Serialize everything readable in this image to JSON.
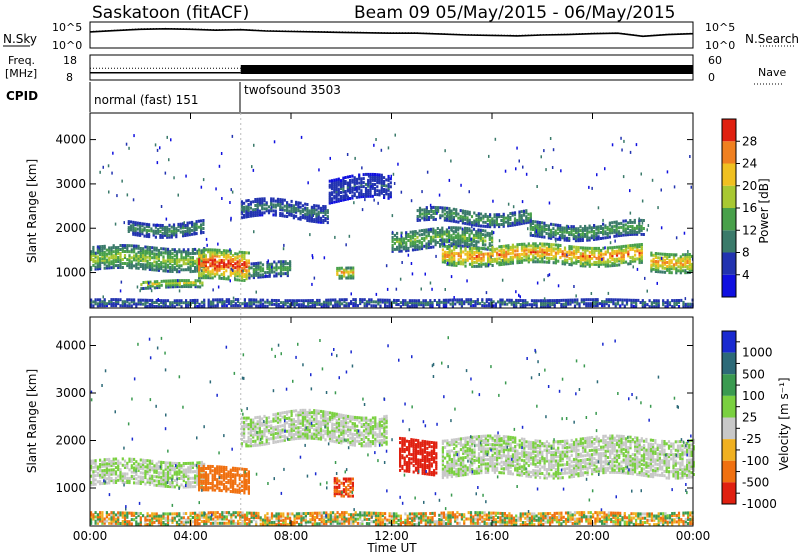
{
  "header": {
    "station": "Saskatoon (fitACF)",
    "beam_info": "Beam 09  05/May/2015 - 06/May/2015"
  },
  "chart_data": [
    {
      "type": "line",
      "panel": "noise",
      "left_label": "N.Sky",
      "right_label": "N.Search",
      "left_ticks": [
        "10^5",
        "10^0"
      ],
      "right_ticks": [
        "10^5",
        "10^0"
      ],
      "scale": "log",
      "x_hours": [
        0,
        1,
        2,
        3,
        4,
        5,
        6,
        7,
        8,
        9,
        10,
        11,
        12,
        13,
        14,
        15,
        16,
        17,
        18,
        19,
        20,
        21,
        22,
        23,
        24
      ],
      "series": [
        {
          "label": "N.Sky",
          "style": "solid",
          "log10_values": [
            3.2,
            3.5,
            3.8,
            3.9,
            3.8,
            3.6,
            3.7,
            3.4,
            3.3,
            3.2,
            3.1,
            3.0,
            2.9,
            2.9,
            2.7,
            2.5,
            2.4,
            2.3,
            2.5,
            2.6,
            2.8,
            2.9,
            2.2,
            2.6,
            2.8
          ]
        },
        {
          "label": "N.Search",
          "style": "dotted",
          "log10_values": [
            3.3,
            3.6,
            3.9,
            4.0,
            3.9,
            3.7,
            3.8,
            3.5,
            3.4,
            3.3,
            3.2,
            3.1,
            3.0,
            3.0,
            2.8,
            2.6,
            2.5,
            2.4,
            2.6,
            2.7,
            2.9,
            3.0,
            2.3,
            2.7,
            2.9
          ]
        }
      ]
    },
    {
      "type": "line",
      "panel": "frequency",
      "left_label": "Freq.",
      "left_unit": "[MHz]",
      "right_label": "Nave",
      "left_ticks": [
        "18",
        "8"
      ],
      "right_ticks": [
        "60",
        "0"
      ],
      "segments": [
        {
          "start_hour": 0,
          "end_hour": 6,
          "freq_mhz": 10.5,
          "nave": 28
        },
        {
          "start_hour": 6,
          "end_hour": 24,
          "freq_mhz": 11.5,
          "nave": 20
        }
      ]
    },
    {
      "type": "table",
      "panel": "cpid",
      "label": "CPID",
      "programs": [
        {
          "name": "normal (fast) 151",
          "start_hour": 0,
          "end_hour": 6
        },
        {
          "name": "twofsound 3503",
          "start_hour": 6,
          "end_hour": 24
        }
      ]
    },
    {
      "type": "heatmap",
      "panel": "power",
      "ylabel": "Slant Range [km]",
      "yticks": [
        "1000",
        "2000",
        "3000",
        "4000"
      ],
      "ylim": [
        200,
        4600
      ],
      "colorbar_label": "Power [dB]",
      "colorbar_ticks": [
        "4",
        "8",
        "12",
        "16",
        "20",
        "24",
        "28"
      ],
      "colorbar_range": [
        0,
        32
      ],
      "colors": [
        "#1010e0",
        "#2233b0",
        "#3a7a6a",
        "#48a04a",
        "#a8c832",
        "#f0c020",
        "#f08020",
        "#e02010"
      ],
      "echo_bands": [
        {
          "start_hour": 0.0,
          "end_hour": 4.5,
          "range_center_km": 1350,
          "range_width_km": 500,
          "peak_db": 18
        },
        {
          "start_hour": 1.5,
          "end_hour": 4.5,
          "range_center_km": 2050,
          "range_width_km": 300,
          "peak_db": 12
        },
        {
          "start_hour": 4.3,
          "end_hour": 6.3,
          "range_center_km": 1200,
          "range_width_km": 650,
          "peak_db": 30
        },
        {
          "start_hour": 2.0,
          "end_hour": 4.5,
          "range_center_km": 780,
          "range_width_km": 180,
          "peak_db": 20
        },
        {
          "start_hour": 6.3,
          "end_hour": 8.0,
          "range_center_km": 1100,
          "range_width_km": 350,
          "peak_db": 14
        },
        {
          "start_hour": 6.0,
          "end_hour": 9.5,
          "range_center_km": 2450,
          "range_width_km": 400,
          "peak_db": 10
        },
        {
          "start_hour": 9.5,
          "end_hour": 12.0,
          "range_center_km": 2900,
          "range_width_km": 500,
          "peak_db": 8
        },
        {
          "start_hour": 9.8,
          "end_hour": 10.5,
          "range_center_km": 1000,
          "range_width_km": 250,
          "peak_db": 24
        },
        {
          "start_hour": 12.0,
          "end_hour": 16.0,
          "range_center_km": 1800,
          "range_width_km": 450,
          "peak_db": 16
        },
        {
          "start_hour": 13.0,
          "end_hour": 17.5,
          "range_center_km": 2300,
          "range_width_km": 300,
          "peak_db": 14
        },
        {
          "start_hour": 14.0,
          "end_hour": 22.0,
          "range_center_km": 1450,
          "range_width_km": 450,
          "peak_db": 26
        },
        {
          "start_hour": 17.5,
          "end_hour": 22.0,
          "range_center_km": 2000,
          "range_width_km": 350,
          "peak_db": 14
        },
        {
          "start_hour": 22.3,
          "end_hour": 24.0,
          "range_center_km": 1300,
          "range_width_km": 450,
          "peak_db": 24
        },
        {
          "start_hour": 0.0,
          "end_hour": 24.0,
          "range_center_km": 350,
          "range_width_km": 150,
          "peak_db": 10
        }
      ]
    },
    {
      "type": "heatmap",
      "panel": "velocity",
      "ylabel": "Slant Range [km]",
      "yticks": [
        "1000",
        "2000",
        "3000",
        "4000"
      ],
      "ylim": [
        200,
        4600
      ],
      "colorbar_label": "Velocity [m s⁻¹]",
      "colorbar_ticks": [
        "1000",
        "500",
        "100",
        "25",
        "-25",
        "-100",
        "-500",
        "-1000"
      ],
      "colors": [
        "#1a2ad0",
        "#2d6a78",
        "#3a9a50",
        "#7ad040",
        "#c8c8c8",
        "#f0b020",
        "#f07010",
        "#e02010"
      ],
      "echo_bands": [
        {
          "start_hour": 0.0,
          "end_hour": 4.5,
          "range_center_km": 1350,
          "range_width_km": 500,
          "velocity": 0
        },
        {
          "start_hour": 0.0,
          "end_hour": 24.0,
          "range_center_km": 400,
          "range_width_km": 250,
          "velocity": -50
        },
        {
          "start_hour": 4.3,
          "end_hour": 6.3,
          "range_center_km": 1200,
          "range_width_km": 500,
          "velocity": -300
        },
        {
          "start_hour": 6.0,
          "end_hour": 11.8,
          "range_center_km": 2300,
          "range_width_km": 600,
          "velocity": 0
        },
        {
          "start_hour": 9.7,
          "end_hour": 10.5,
          "range_center_km": 1100,
          "range_width_km": 400,
          "velocity": -500
        },
        {
          "start_hour": 12.3,
          "end_hour": 13.8,
          "range_center_km": 1700,
          "range_width_km": 700,
          "velocity": -800
        },
        {
          "start_hour": 14.0,
          "end_hour": 24.0,
          "range_center_km": 1700,
          "range_width_km": 800,
          "velocity": 0
        }
      ]
    }
  ],
  "time_axis": {
    "label": "Time UT",
    "ticks": [
      "00:00",
      "04:00",
      "08:00",
      "12:00",
      "16:00",
      "20:00",
      "00:00"
    ],
    "xlim_hours": [
      0,
      24
    ]
  }
}
